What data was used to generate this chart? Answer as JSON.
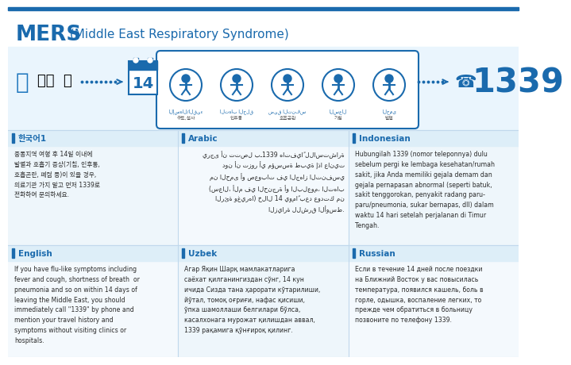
{
  "title_mers": "MERS",
  "title_sub": " (Middle East Respiratory Syndrome)",
  "bg_color": "#f5f8fb",
  "blue": "#2178be",
  "dark_blue": "#1a6aad",
  "light_blue_bg": "#ddeef8",
  "divider_color": "#c0d8ec",
  "text_color": "#2a2a2a",
  "body_blue": "#2060a0",
  "sections": [
    {
      "title": "한국어1",
      "text": "중동지역 여행 후 14일 이내에\n발열과 호흡기 증상(기침, 인후통,\n호흡곤란, 폐렴 등)이 있을 경우,\n의료기관 가지 말고 먼저 1339로\n전화하여 문의하세요.",
      "col": 0,
      "row": 0,
      "rtl": false
    },
    {
      "title": "Arabic",
      "text": "يرجى أن تتصل بـ1339 هاتفياً للاستشارة\nدون أن تزور أي مؤسسة طبية إذا عانيت\nمن الحمى أو صعوبات في الجهاز التنفسي\n(سعال، ألم في الحنجرة أو البلعوم، التهاب\nالرئة وغيرها) خلال 14 يوماً بعد عودتك من\nالزيارة للشرق الأوسط.",
      "col": 1,
      "row": 0,
      "rtl": true
    },
    {
      "title": "Indonesian",
      "text": "Hubungilah 1339 (nomor teleponnya) dulu\nsebelum pergi ke lembaga kesehatan/rumah\nsakit, jika Anda memiliki gejala demam dan\ngejala pernapasan abnormal (seperti batuk,\nsakit tenggorokan, penyakit radang paru-\nparu/pneumonia, sukar bernapas, dll) dalam\nwaktu 14 hari setelah perjalanan di Timur\nTengah.",
      "col": 2,
      "row": 0,
      "rtl": false
    },
    {
      "title": "English",
      "text": "If you have flu-like symptoms including\nfever and cough, shortness of breath  or\npneumonia and so on within 14 days of\nleaving the Middle East, you should\nimmediately call \"1339\" by phone and\nmention your travel history and\nsymptoms without visiting clinics or\nhospitals.",
      "col": 0,
      "row": 1,
      "rtl": false
    },
    {
      "title": "Uzbek",
      "text": "Агар Яқин Шарқ мамлакатларига\nсаёхат қилганингиздан сўнг, 14 кун\nичида Сизда тана ҳарорати кўтарилиши,\nйўтал, томоқ оғриғи, нафас қисиши,\nўпка шамоллаши белгилари бўлса,\nкасалхонага мурожат қилишдан аввал,\n1339 рақамига қўнғироқ қилинг.",
      "col": 1,
      "row": 1,
      "rtl": false
    },
    {
      "title": "Russian",
      "text": "Если в течение 14 дней после поездки\nна Ближний Восток у вас повысилась\nтемпература, появился кашель, боль в\nгорле, одышка, воспаление легких, то\nпрежде чем обратиться в больницу\nпозвоните по телефону 1339.",
      "col": 2,
      "row": 1,
      "rtl": false
    }
  ],
  "symptoms_kr": [
    "구토,설사",
    "인후통",
    "호흡곤란",
    "기침",
    "발열"
  ],
  "symptoms_ar": [
    "الإسهال/القيء",
    "التهاب الحلق",
    "ضيق التنفس",
    "السعال",
    "الحمى"
  ],
  "day_number": "14",
  "phone_number": "1339",
  "header_stripe_color": "#2e85c8",
  "infographic_bg": "#eaf5fd"
}
